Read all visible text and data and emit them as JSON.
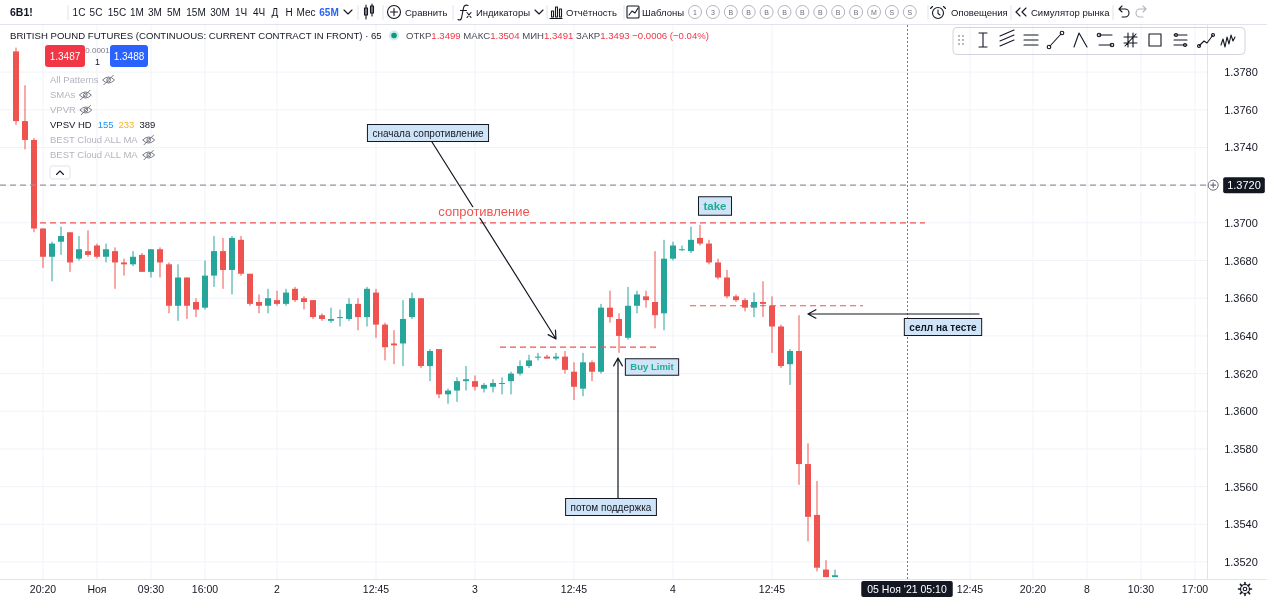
{
  "chart_data": {
    "type": "candlestick",
    "title": "BRITISH POUND FUTURES (CONTINUOUS: CURRENT CONTRACT IN FRONT) · 65",
    "subtitle": "ОТКР1.3499 МАКС1.3504 МИН1.3491 ЗАКР1.3493 −0.0006 (−0.04%)",
    "categories": [
      null,
      null,
      null,
      "20:20",
      null,
      null,
      null,
      null,
      null,
      "Ноя",
      null,
      null,
      null,
      null,
      null,
      "09:30",
      null,
      null,
      null,
      null,
      null,
      "16:00",
      null,
      null,
      null,
      null,
      null,
      null,
      null,
      "2",
      null,
      null,
      null,
      null,
      null,
      null,
      null,
      null,
      null,
      null,
      "12:45",
      null,
      null,
      null,
      null,
      null,
      null,
      null,
      null,
      null,
      null,
      "3",
      null,
      null,
      null,
      null,
      null,
      null,
      null,
      null,
      null,
      null,
      "12:45",
      null,
      null,
      null,
      null,
      null,
      null,
      null,
      null,
      null,
      null,
      "4",
      null,
      null,
      null,
      null,
      null,
      null,
      null,
      null,
      null,
      null,
      "12:45",
      null,
      null,
      null,
      null,
      null,
      null,
      null,
      null,
      null,
      null,
      null,
      null,
      null,
      null,
      "05 Ноя '21 05:10",
      null,
      null,
      null,
      null,
      null,
      null,
      "12:45",
      null,
      null,
      null,
      null,
      null,
      null,
      "20:20",
      null,
      null,
      null,
      null,
      null,
      "8",
      null,
      null,
      null,
      null,
      null,
      "10:30",
      null,
      null,
      null,
      null,
      null,
      "17:00",
      null
    ],
    "ohlc": [
      [
        1.3791,
        1.3793,
        1.3752,
        1.3754
      ],
      [
        1.3754,
        1.3773,
        1.3739,
        1.3744
      ],
      [
        1.3744,
        1.3745,
        1.3695,
        1.3697
      ],
      [
        1.3697,
        1.3697,
        1.3676,
        1.3682
      ],
      [
        1.3682,
        1.369,
        1.3669,
        1.3689
      ],
      [
        1.369,
        1.3698,
        1.3683,
        1.3693
      ],
      [
        1.3695,
        1.3695,
        1.3674,
        1.3679
      ],
      [
        1.3681,
        1.3693,
        1.368,
        1.3686
      ],
      [
        1.3685,
        1.3696,
        1.3682,
        1.3683
      ],
      [
        1.3688,
        1.3689,
        1.3681,
        1.3682
      ],
      [
        1.3682,
        1.3689,
        1.3679,
        1.3686
      ],
      [
        1.3685,
        1.3687,
        1.3665,
        1.3679
      ],
      [
        1.3679,
        1.3681,
        1.3672,
        1.3678
      ],
      [
        1.3678,
        1.3685,
        1.3677,
        1.3682
      ],
      [
        1.3683,
        1.3684,
        1.3674,
        1.3674
      ],
      [
        1.3674,
        1.3686,
        1.3671,
        1.3686
      ],
      [
        1.3686,
        1.3687,
        1.3671,
        1.3679
      ],
      [
        1.3678,
        1.3679,
        1.3652,
        1.3656
      ],
      [
        1.3656,
        1.3678,
        1.3648,
        1.3671
      ],
      [
        1.3671,
        1.3671,
        1.3649,
        1.3656
      ],
      [
        1.3658,
        1.366,
        1.365,
        1.3654
      ],
      [
        1.3655,
        1.368,
        1.3654,
        1.3672
      ],
      [
        1.3672,
        1.3693,
        1.3666,
        1.3685
      ],
      [
        1.3685,
        1.3692,
        1.3665,
        1.3675
      ],
      [
        1.3675,
        1.3693,
        1.3662,
        1.3692
      ],
      [
        1.3691,
        1.3693,
        1.3672,
        1.3673
      ],
      [
        1.3673,
        1.3673,
        1.3656,
        1.3657
      ],
      [
        1.3658,
        1.3662,
        1.3652,
        1.3656
      ],
      [
        1.3656,
        1.3665,
        1.3652,
        1.366
      ],
      [
        1.3659,
        1.3664,
        1.3656,
        1.3657
      ],
      [
        1.3657,
        1.3665,
        1.3656,
        1.3663
      ],
      [
        1.3665,
        1.3666,
        1.3658,
        1.3659
      ],
      [
        1.366,
        1.3661,
        1.3654,
        1.3658
      ],
      [
        1.3659,
        1.3659,
        1.3649,
        1.365
      ],
      [
        1.3651,
        1.3652,
        1.3648,
        1.3649
      ],
      [
        1.3648,
        1.3655,
        1.3647,
        1.3649
      ],
      [
        1.365,
        1.3654,
        1.3645,
        1.365
      ],
      [
        1.3649,
        1.366,
        1.3648,
        1.3657
      ],
      [
        1.3657,
        1.366,
        1.3643,
        1.365
      ],
      [
        1.365,
        1.3666,
        1.3645,
        1.3665
      ],
      [
        1.3663,
        1.3665,
        1.3639,
        1.3646
      ],
      [
        1.3646,
        1.3647,
        1.3627,
        1.3634
      ],
      [
        1.3636,
        1.3643,
        1.3625,
        1.3635
      ],
      [
        1.3636,
        1.3659,
        1.3624,
        1.3649
      ],
      [
        1.365,
        1.3663,
        1.3649,
        1.366
      ],
      [
        1.366,
        1.366,
        1.3623,
        1.3624
      ],
      [
        1.3624,
        1.3633,
        1.3616,
        1.3632
      ],
      [
        1.3633,
        1.3633,
        1.3607,
        1.3609
      ],
      [
        1.3609,
        1.3612,
        1.3604,
        1.3611
      ],
      [
        1.3611,
        1.3618,
        1.3605,
        1.3616
      ],
      [
        1.3616,
        1.3624,
        1.3611,
        1.3617
      ],
      [
        1.3616,
        1.3619,
        1.3611,
        1.3613
      ],
      [
        1.3612,
        1.3615,
        1.361,
        1.3614
      ],
      [
        1.3613,
        1.3617,
        1.361,
        1.3615
      ],
      [
        1.3615,
        1.3618,
        1.3609,
        1.3615
      ],
      [
        1.3616,
        1.3621,
        1.3609,
        1.362
      ],
      [
        1.362,
        1.3627,
        1.3619,
        1.3624
      ],
      [
        1.3624,
        1.363,
        1.3623,
        1.3627
      ],
      [
        1.3629,
        1.3631,
        1.3627,
        1.3629
      ],
      [
        1.3629,
        1.363,
        1.3628,
        1.3628
      ],
      [
        1.3628,
        1.3631,
        1.3627,
        1.3629
      ],
      [
        1.3629,
        1.3632,
        1.362,
        1.3622
      ],
      [
        1.3621,
        1.3626,
        1.3606,
        1.3613
      ],
      [
        1.3612,
        1.3631,
        1.3608,
        1.3626
      ],
      [
        1.3626,
        1.3627,
        1.3616,
        1.3621
      ],
      [
        1.3621,
        1.3657,
        1.362,
        1.3655
      ],
      [
        1.3655,
        1.3664,
        1.3647,
        1.365
      ],
      [
        1.3649,
        1.3652,
        1.3631,
        1.364
      ],
      [
        1.3639,
        1.3666,
        1.3638,
        1.3656
      ],
      [
        1.3656,
        1.3664,
        1.3652,
        1.3662
      ],
      [
        1.3661,
        1.3664,
        1.3655,
        1.3659
      ],
      [
        1.3658,
        1.3685,
        1.3644,
        1.3651
      ],
      [
        1.3652,
        1.3691,
        1.3643,
        1.3681
      ],
      [
        1.3681,
        1.369,
        1.368,
        1.3688
      ],
      [
        1.3686,
        1.3688,
        1.3685,
        1.3686
      ],
      [
        1.3685,
        1.3698,
        1.3684,
        1.3691
      ],
      [
        1.3692,
        1.3699,
        1.3688,
        1.3689
      ],
      [
        1.3689,
        1.3691,
        1.3678,
        1.3679
      ],
      [
        1.3679,
        1.3681,
        1.367,
        1.3671
      ],
      [
        1.3671,
        1.3675,
        1.366,
        1.3661
      ],
      [
        1.3661,
        1.3662,
        1.3658,
        1.3659
      ],
      [
        1.3659,
        1.366,
        1.3653,
        1.3655
      ],
      [
        1.3655,
        1.3663,
        1.365,
        1.3658
      ],
      [
        1.3658,
        1.3669,
        1.365,
        1.3657
      ],
      [
        1.3656,
        1.3661,
        1.3631,
        1.3645
      ],
      [
        1.3645,
        1.3646,
        1.3623,
        1.3624
      ],
      [
        1.3625,
        1.3633,
        1.3614,
        1.3632
      ],
      [
        1.3632,
        1.3651,
        1.3561,
        1.3572
      ],
      [
        1.3572,
        1.3583,
        1.3531,
        1.3544
      ],
      [
        1.3545,
        1.3563,
        1.3515,
        1.3517
      ],
      [
        1.3516,
        1.3521,
        1.3512,
        1.3512
      ],
      [
        1.3512,
        1.3516,
        1.3512,
        1.3513
      ],
      null,
      null,
      null,
      null,
      null,
      null,
      null,
      null,
      null,
      null,
      null,
      null,
      null,
      null,
      null,
      null,
      null,
      null,
      null,
      null,
      null,
      null,
      null,
      null,
      null,
      null,
      null,
      null,
      null,
      null,
      null,
      null,
      null,
      null,
      null,
      null,
      null,
      null,
      null,
      null,
      null
    ],
    "colors": [
      "#ef5350",
      "#ef5350",
      "#ef5350",
      "#ef5350",
      "#26a69a",
      "#26a69a",
      "#ef5350",
      "#26a69a",
      "#ef5350",
      "#ef5350",
      "#26a69a",
      "#ef5350",
      "#ef5350",
      "#26a69a",
      "#ef5350",
      "#26a69a",
      "#ef5350",
      "#ef5350",
      "#26a69a",
      "#ef5350",
      "#ef5350",
      "#26a69a",
      "#26a69a",
      "#ef5350",
      "#26a69a",
      "#ef5350",
      "#ef5350",
      "#ef5350",
      "#26a69a",
      "#ef5350",
      "#26a69a",
      "#ef5350",
      "#ef5350",
      "#ef5350",
      "#ef5350",
      "#26a69a",
      "#26a69a",
      "#26a69a",
      "#ef5350",
      "#26a69a",
      "#ef5350",
      "#ef5350",
      "#ef5350",
      "#26a69a",
      "#26a69a",
      "#ef5350",
      "#26a69a",
      "#ef5350",
      "#26a69a",
      "#26a69a",
      "#26a69a",
      "#ef5350",
      "#26a69a",
      "#26a69a",
      "#26a69a",
      "#26a69a",
      "#26a69a",
      "#26a69a",
      "#26a69a",
      "#ef5350",
      "#26a69a",
      "#ef5350",
      "#ef5350",
      "#26a69a",
      "#ef5350",
      "#26a69a",
      "#ef5350",
      "#ef5350",
      "#26a69a",
      "#26a69a",
      "#ef5350",
      "#ef5350",
      "#26a69a",
      "#26a69a",
      "#26a69a",
      "#26a69a",
      "#ef5350",
      "#ef5350",
      "#ef5350",
      "#ef5350",
      "#ef5350",
      "#ef5350",
      "#26a69a",
      "#ef5350",
      "#ef5350",
      "#ef5350",
      "#26a69a",
      "#ef5350",
      "#ef5350",
      "#ef5350",
      "#ef5350",
      "#26a69a",
      null,
      null,
      null,
      null,
      null,
      null,
      null,
      null,
      null,
      null,
      null,
      null,
      null,
      null,
      null,
      null,
      null,
      null,
      null,
      null,
      null,
      null,
      null,
      null,
      null,
      null,
      null,
      null,
      null,
      null,
      null,
      null,
      null,
      null,
      null,
      null,
      null,
      null,
      null,
      null,
      null
    ],
    "ylim": [
      1.3511,
      1.3805
    ],
    "yticks": [
      {
        "value": 1.378,
        "label": "1.3780"
      },
      {
        "value": 1.376,
        "label": "1.3760"
      },
      {
        "value": 1.374,
        "label": "1.3740"
      },
      {
        "value": 1.372,
        "label": null
      },
      {
        "value": 1.37,
        "label": "1.3700"
      },
      {
        "value": 1.368,
        "label": "1.3680"
      },
      {
        "value": 1.366,
        "label": "1.3660"
      },
      {
        "value": 1.364,
        "label": "1.3640"
      },
      {
        "value": 1.362,
        "label": "1.3620"
      },
      {
        "value": 1.36,
        "label": "1.3600"
      },
      {
        "value": 1.358,
        "label": "1.3580"
      },
      {
        "value": 1.356,
        "label": "1.3560"
      },
      {
        "value": 1.354,
        "label": "1.3540"
      },
      {
        "value": 1.352,
        "label": "1.3520"
      }
    ],
    "grid": true,
    "ref_lines": [
      {
        "axis": "y",
        "value": 1.37,
        "label": "сопротивление",
        "color": "#f05350",
        "line_style": "dashed"
      },
      {
        "axis": "y",
        "value": 1.3656,
        "color": "#f05350",
        "line_style": "dashed"
      },
      {
        "axis": "y",
        "value": 1.3634,
        "color": "#f05350",
        "line_style": "dashed"
      },
      {
        "axis": "y",
        "value": 1.372,
        "label": "1.3720",
        "color": "#9598a1",
        "line_style": "dashed"
      },
      {
        "axis": "x",
        "value": "05 Ноя '21 05:10",
        "color": "#787b86",
        "line_style": "dotted"
      }
    ],
    "annotations": [
      "6B1!",
      "1С",
      "5С",
      "15С",
      "1М",
      "3М",
      "5М",
      "15М",
      "30М",
      "1Ч",
      "4Ч",
      "Д",
      "Н",
      "Мес",
      "65М",
      "Сравнить",
      "Индикаторы",
      "Отчётность",
      "Шаблоны",
      "1",
      "3",
      "B",
      "B",
      "B",
      "B",
      "B",
      "B",
      "B",
      "B",
      "M",
      "S",
      "S",
      "Оповещения",
      "Симулятор рынка",
      "1.3487",
      "0.0001",
      "1",
      "1.3488",
      "All Patterns",
      "SMAs",
      "VPVR",
      "VPSV HD",
      "155",
      "233",
      "389",
      "BEST Cloud ALL MA",
      "BEST Cloud ALL MA",
      "сначала сопротивление",
      "потом поддержка",
      "Buy Limit",
      "take",
      "селл на тесте"
    ]
  }
}
